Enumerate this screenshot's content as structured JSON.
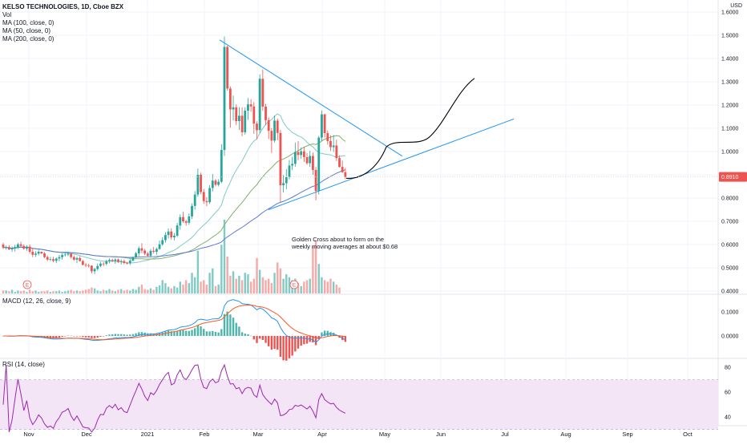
{
  "header": {
    "symbol_line": "KELSO TECHNOLOGIES, 1D, Cboe BZX",
    "indicators": [
      "Vol",
      "MA (100, close, 0)",
      "MA (50, close, 0)",
      "MA (200, close, 0)"
    ],
    "currency": "USD"
  },
  "annotation": {
    "line1": "Golden Cross about to form on the",
    "line2": "weekly moving averages at about $0.68"
  },
  "macd": {
    "title": "MACD (12, 26, close, 9)",
    "ticks": [
      "0.1000",
      "0.0000"
    ]
  },
  "rsi": {
    "title": "RSI (14, close)",
    "ticks": [
      "80",
      "60",
      "40"
    ]
  },
  "colors": {
    "up": "#26a69a",
    "down": "#ef5350",
    "trendline": "#2196f3",
    "projection": "#000000",
    "price_badge": "#ef5350",
    "ma_teal": "#80cbc4",
    "ma_green": "#7fb069",
    "ma_blue": "#5b7bd5",
    "rsi_line": "#9c27b0",
    "rsi_band": "#f3e5f5",
    "macd_line": "#2196f3",
    "signal_line": "#ff5722"
  },
  "chart_data": {
    "type": "candlestick",
    "title": "KELSO TECHNOLOGIES, 1D, Cboe BZX",
    "y_ticks": [
      "1.6000",
      "1.5000",
      "1.4000",
      "1.3000",
      "1.2000",
      "1.1000",
      "1.0000",
      "0.9000",
      "0.8000",
      "0.7000",
      "0.6000",
      "0.5000",
      "0.4000"
    ],
    "ylim": [
      0.4,
      1.6
    ],
    "x_ticks": [
      "Nov",
      "Dec",
      "2021",
      "Feb",
      "Mar",
      "Apr",
      "May",
      "Jun",
      "Jul",
      "Aug",
      "Sep",
      "Oct"
    ],
    "last_price": "0.8910",
    "earnings_markers": [
      "E",
      "E"
    ],
    "ohlc": [
      [
        0.6,
        0.608,
        0.581,
        0.587
      ],
      [
        0.587,
        0.596,
        0.578,
        0.589
      ],
      [
        0.589,
        0.597,
        0.576,
        0.579
      ],
      [
        0.579,
        0.592,
        0.568,
        0.583
      ],
      [
        0.583,
        0.599,
        0.57,
        0.589
      ],
      [
        0.589,
        0.607,
        0.58,
        0.601
      ],
      [
        0.601,
        0.612,
        0.592,
        0.594
      ],
      [
        0.594,
        0.601,
        0.578,
        0.582
      ],
      [
        0.582,
        0.597,
        0.573,
        0.591
      ],
      [
        0.591,
        0.6,
        0.562,
        0.569
      ],
      [
        0.569,
        0.581,
        0.546,
        0.556
      ],
      [
        0.556,
        0.571,
        0.547,
        0.561
      ],
      [
        0.561,
        0.577,
        0.553,
        0.569
      ],
      [
        0.569,
        0.57,
        0.559,
        0.562
      ],
      [
        0.562,
        0.568,
        0.541,
        0.546
      ],
      [
        0.546,
        0.553,
        0.529,
        0.535
      ],
      [
        0.535,
        0.547,
        0.529,
        0.537
      ],
      [
        0.537,
        0.547,
        0.524,
        0.53
      ],
      [
        0.53,
        0.545,
        0.52,
        0.54
      ],
      [
        0.54,
        0.555,
        0.528,
        0.546
      ],
      [
        0.546,
        0.562,
        0.535,
        0.555
      ],
      [
        0.555,
        0.565,
        0.548,
        0.557
      ],
      [
        0.557,
        0.568,
        0.55,
        0.561
      ],
      [
        0.561,
        0.564,
        0.54,
        0.546
      ],
      [
        0.546,
        0.553,
        0.53,
        0.535
      ],
      [
        0.535,
        0.548,
        0.52,
        0.542
      ],
      [
        0.542,
        0.55,
        0.526,
        0.529
      ],
      [
        0.529,
        0.534,
        0.51,
        0.513
      ],
      [
        0.513,
        0.521,
        0.503,
        0.51
      ],
      [
        0.51,
        0.518,
        0.501,
        0.509
      ],
      [
        0.509,
        0.511,
        0.476,
        0.485
      ],
      [
        0.485,
        0.5,
        0.473,
        0.495
      ],
      [
        0.495,
        0.519,
        0.488,
        0.508
      ],
      [
        0.508,
        0.525,
        0.502,
        0.518
      ],
      [
        0.518,
        0.525,
        0.507,
        0.517
      ],
      [
        0.517,
        0.535,
        0.51,
        0.529
      ],
      [
        0.529,
        0.541,
        0.519,
        0.534
      ],
      [
        0.534,
        0.539,
        0.525,
        0.529
      ],
      [
        0.529,
        0.542,
        0.517,
        0.536
      ],
      [
        0.536,
        0.54,
        0.521,
        0.525
      ],
      [
        0.525,
        0.537,
        0.514,
        0.529
      ],
      [
        0.529,
        0.536,
        0.515,
        0.521
      ],
      [
        0.521,
        0.526,
        0.514,
        0.519
      ],
      [
        0.519,
        0.539,
        0.512,
        0.531
      ],
      [
        0.531,
        0.549,
        0.527,
        0.546
      ],
      [
        0.546,
        0.569,
        0.541,
        0.562
      ],
      [
        0.562,
        0.592,
        0.55,
        0.584
      ],
      [
        0.584,
        0.606,
        0.563,
        0.574
      ],
      [
        0.574,
        0.581,
        0.554,
        0.561
      ],
      [
        0.561,
        0.568,
        0.546,
        0.552
      ],
      [
        0.552,
        0.581,
        0.544,
        0.573
      ],
      [
        0.573,
        0.59,
        0.561,
        0.569
      ],
      [
        0.569,
        0.587,
        0.556,
        0.581
      ],
      [
        0.581,
        0.617,
        0.577,
        0.601
      ],
      [
        0.601,
        0.631,
        0.595,
        0.619
      ],
      [
        0.619,
        0.653,
        0.608,
        0.641
      ],
      [
        0.641,
        0.669,
        0.626,
        0.656
      ],
      [
        0.656,
        0.67,
        0.621,
        0.631
      ],
      [
        0.631,
        0.649,
        0.618,
        0.638
      ],
      [
        0.638,
        0.693,
        0.632,
        0.682
      ],
      [
        0.682,
        0.73,
        0.664,
        0.718
      ],
      [
        0.718,
        0.741,
        0.693,
        0.7
      ],
      [
        0.7,
        0.707,
        0.681,
        0.694
      ],
      [
        0.694,
        0.734,
        0.685,
        0.721
      ],
      [
        0.721,
        0.777,
        0.71,
        0.766
      ],
      [
        0.766,
        0.83,
        0.75,
        0.815
      ],
      [
        0.815,
        0.927,
        0.805,
        0.9
      ],
      [
        0.9,
        0.909,
        0.817,
        0.826
      ],
      [
        0.826,
        0.839,
        0.775,
        0.787
      ],
      [
        0.787,
        0.804,
        0.765,
        0.782
      ],
      [
        0.782,
        0.855,
        0.775,
        0.843
      ],
      [
        0.843,
        0.904,
        0.828,
        0.875
      ],
      [
        0.875,
        0.882,
        0.85,
        0.857
      ],
      [
        0.857,
        0.881,
        0.85,
        0.87
      ],
      [
        0.87,
        1.032,
        0.864,
        1.007
      ],
      [
        1.007,
        1.495,
        0.981,
        1.45
      ],
      [
        1.45,
        1.455,
        1.262,
        1.271
      ],
      [
        1.271,
        1.28,
        1.103,
        1.181
      ],
      [
        1.181,
        1.241,
        1.133,
        1.19
      ],
      [
        1.19,
        1.203,
        1.114,
        1.131
      ],
      [
        1.131,
        1.191,
        1.093,
        1.154
      ],
      [
        1.154,
        1.19,
        1.066,
        1.083
      ],
      [
        1.083,
        1.19,
        1.073,
        1.176
      ],
      [
        1.176,
        1.23,
        1.136,
        1.203
      ],
      [
        1.203,
        1.225,
        1.171,
        1.194
      ],
      [
        1.194,
        1.213,
        1.076,
        1.12
      ],
      [
        1.12,
        1.13,
        1.052,
        1.092
      ],
      [
        1.092,
        1.332,
        1.078,
        1.313
      ],
      [
        1.313,
        1.353,
        1.175,
        1.193
      ],
      [
        1.193,
        1.205,
        1.113,
        1.135
      ],
      [
        1.135,
        1.147,
        1.054,
        1.089
      ],
      [
        1.089,
        1.101,
        0.994,
        1.047
      ],
      [
        1.047,
        1.155,
        1.039,
        1.133
      ],
      [
        1.133,
        1.142,
        1.048,
        1.08
      ],
      [
        1.08,
        1.094,
        0.782,
        0.855
      ],
      [
        0.855,
        0.899,
        0.824,
        0.864
      ],
      [
        0.864,
        0.924,
        0.838,
        0.89
      ],
      [
        0.89,
        0.964,
        0.88,
        0.94
      ],
      [
        0.94,
        0.977,
        0.92,
        0.947
      ],
      [
        0.947,
        1.039,
        0.935,
        0.998
      ],
      [
        0.998,
        1.045,
        0.963,
        0.985
      ],
      [
        0.985,
        1.017,
        0.969,
        1.001
      ],
      [
        1.001,
        1.021,
        0.955,
        0.976
      ],
      [
        0.976,
        0.993,
        0.943,
        0.95
      ],
      [
        0.95,
        1.003,
        0.934,
        0.981
      ],
      [
        0.981,
        0.996,
        0.9,
        0.921
      ],
      [
        0.921,
        0.934,
        0.79,
        0.83
      ],
      [
        0.83,
        1.068,
        0.815,
        1.06
      ],
      [
        1.06,
        1.177,
        1.046,
        1.16
      ],
      [
        1.16,
        1.163,
        1.06,
        1.079
      ],
      [
        1.079,
        1.091,
        1.03,
        1.045
      ],
      [
        1.045,
        1.07,
        1.002,
        1.019
      ],
      [
        1.019,
        1.071,
        0.998,
        1.026
      ],
      [
        1.026,
        1.051,
        0.959,
        0.972
      ],
      [
        0.972,
        0.984,
        0.931,
        0.934
      ],
      [
        0.934,
        0.961,
        0.909,
        0.911
      ],
      [
        0.911,
        0.93,
        0.881,
        0.891
      ]
    ],
    "volume_ratios": [
      0.04,
      0.04,
      0.03,
      0.05,
      0.02,
      0.04,
      0.03,
      0.04,
      0.02,
      0.05,
      0.03,
      0.04,
      0.02,
      0.03,
      0.03,
      0.04,
      0.02,
      0.03,
      0.03,
      0.04,
      0.02,
      0.03,
      0.04,
      0.05,
      0.03,
      0.04,
      0.03,
      0.04,
      0.05,
      0.06,
      0.08,
      0.07,
      0.04,
      0.03,
      0.05,
      0.04,
      0.06,
      0.04,
      0.03,
      0.05,
      0.06,
      0.04,
      0.05,
      0.04,
      0.06,
      0.05,
      0.09,
      0.12,
      0.06,
      0.05,
      0.07,
      0.05,
      0.09,
      0.11,
      0.18,
      0.14,
      0.09,
      0.07,
      0.1,
      0.08,
      0.16,
      0.12,
      0.18,
      0.14,
      0.28,
      0.22,
      0.58,
      0.16,
      0.18,
      0.12,
      0.28,
      0.34,
      0.1,
      0.12,
      0.66,
      1.0,
      0.5,
      0.24,
      0.3,
      0.2,
      0.24,
      0.18,
      0.28,
      0.26,
      0.16,
      0.2,
      0.48,
      0.32,
      0.22,
      0.18,
      0.2,
      0.14,
      0.28,
      0.42,
      0.34,
      0.2,
      0.26,
      0.22,
      0.18,
      0.2,
      0.14,
      0.1,
      0.16,
      0.18,
      0.2,
      0.64,
      0.72,
      0.4,
      0.22,
      0.18,
      0.16,
      0.2,
      0.16,
      0.12,
      0.08
    ],
    "macd_ticks": [
      "0.1000",
      "0.0000"
    ],
    "rsi_ticks": [
      "80",
      "60",
      "40"
    ]
  }
}
